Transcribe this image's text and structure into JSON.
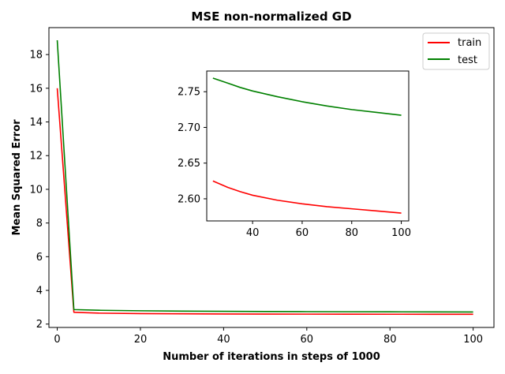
{
  "chart_data": [
    {
      "type": "line",
      "title": "MSE non-normalized GD",
      "xlabel": "Number of iterations in steps of 1000",
      "ylabel": "Mean Squared Error",
      "xlim": [
        -2,
        105
      ],
      "ylim": [
        1.8,
        19.6
      ],
      "xticks": [
        0,
        20,
        40,
        60,
        80,
        100
      ],
      "yticks": [
        2,
        4,
        6,
        8,
        10,
        12,
        14,
        16,
        18
      ],
      "legend_position": "top-right",
      "series": [
        {
          "name": "train",
          "color": "#ff0000",
          "x": [
            0,
            4,
            10,
            20,
            30,
            40,
            50,
            60,
            70,
            80,
            90,
            100
          ],
          "y": [
            16.0,
            2.7,
            2.65,
            2.625,
            2.61,
            2.6,
            2.595,
            2.59,
            2.588,
            2.585,
            2.582,
            2.58
          ]
        },
        {
          "name": "test",
          "color": "#008000",
          "x": [
            0,
            4,
            10,
            20,
            30,
            40,
            50,
            60,
            70,
            80,
            90,
            100
          ],
          "y": [
            18.85,
            2.86,
            2.82,
            2.79,
            2.77,
            2.755,
            2.745,
            2.737,
            2.731,
            2.726,
            2.721,
            2.717
          ]
        }
      ]
    },
    {
      "type": "line",
      "title": "",
      "xlabel": "",
      "ylabel": "",
      "xlim": [
        21.5,
        103
      ],
      "ylim": [
        2.569,
        2.779
      ],
      "xticks": [
        40,
        60,
        80,
        100
      ],
      "yticks": [
        2.6,
        2.65,
        2.7,
        2.75
      ],
      "ytick_labels": [
        "2.60",
        "2.65",
        "2.70",
        "2.75"
      ],
      "series": [
        {
          "name": "train",
          "color": "#ff0000",
          "x": [
            24,
            30,
            35,
            40,
            50,
            60,
            70,
            80,
            90,
            100
          ],
          "y": [
            2.625,
            2.616,
            2.61,
            2.605,
            2.598,
            2.593,
            2.589,
            2.586,
            2.583,
            2.58
          ]
        },
        {
          "name": "test",
          "color": "#008000",
          "x": [
            24,
            30,
            35,
            40,
            50,
            60,
            70,
            80,
            90,
            100
          ],
          "y": [
            2.769,
            2.762,
            2.756,
            2.751,
            2.743,
            2.736,
            2.73,
            2.725,
            2.721,
            2.717
          ]
        }
      ]
    }
  ]
}
